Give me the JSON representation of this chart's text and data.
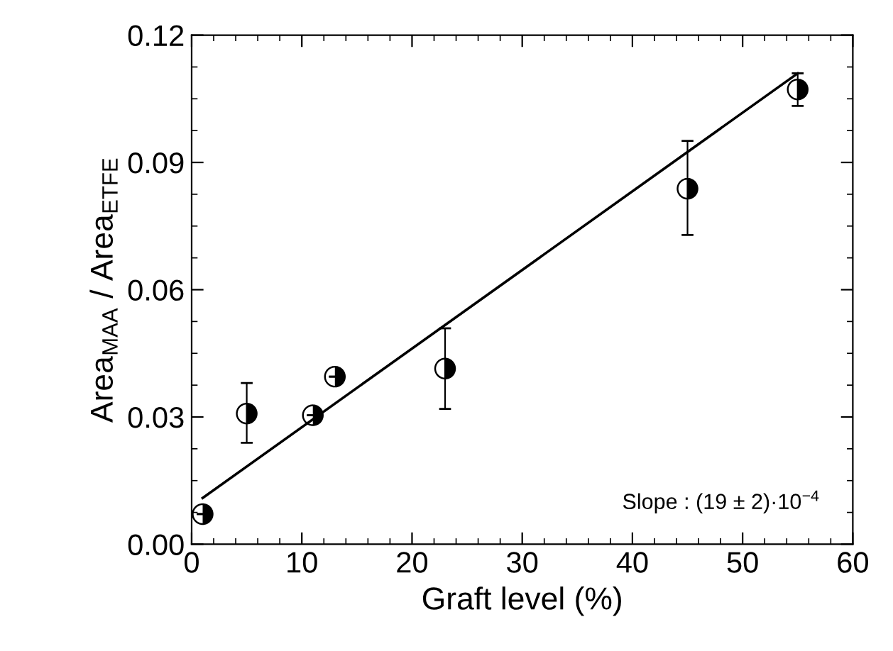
{
  "chart_data": {
    "type": "scatter",
    "xlabel": "Graft level (%)",
    "ylabel": "Area$_{MAA}$ / Area$_{ETFE}$",
    "xlim": [
      0,
      60
    ],
    "xticks": [
      0,
      10,
      20,
      30,
      40,
      50,
      60
    ],
    "ylim": [
      0,
      0.12
    ],
    "yticks": [
      {
        "value": 0,
        "label": "0.00"
      },
      {
        "value": 0.03,
        "label": "0.03"
      },
      {
        "value": 0.06,
        "label": "0.06"
      },
      {
        "value": 0.09,
        "label": "0.09"
      },
      {
        "value": 0.12,
        "label": "0.12"
      }
    ],
    "grid": false,
    "legend": false,
    "marker": "circle",
    "series": [
      {
        "color": "#000000",
        "x": [
          1,
          5,
          11,
          13,
          23,
          45,
          55
        ],
        "values": [
          0.0071,
          0.0308,
          0.0304,
          0.0395,
          0.0414,
          0.0838,
          0.1072
        ],
        "errors": [
          null,
          [
            0.0239,
            0.038
          ],
          null,
          null,
          [
            0.0319,
            0.0509
          ],
          [
            0.0729,
            0.0951
          ],
          [
            0.1033,
            0.111
          ]
        ]
      },
      {
        "type": "line",
        "color": "#000000",
        "x": [
          1,
          55
        ],
        "values": [
          0.0109,
          0.111
        ],
        "line_style": "solid",
        "marker": "none"
      }
    ],
    "annotations": [
      {
        "text": "Slope : (19 ± 2)·10$^{−4}$"
      }
    ]
  }
}
